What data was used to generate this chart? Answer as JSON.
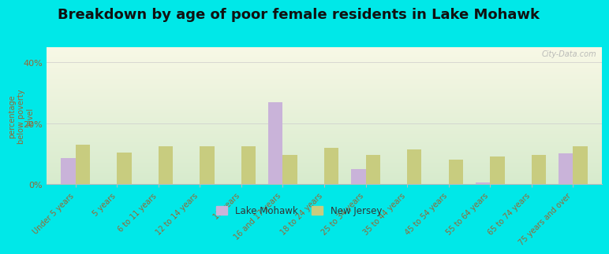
{
  "title": "Breakdown by age of poor female residents in Lake Mohawk",
  "categories": [
    "Under 5 years",
    "5 years",
    "6 to 11 years",
    "12 to 14 years",
    "15 years",
    "16 and 17 years",
    "18 to 24 years",
    "25 to 34 years",
    "35 to 44 years",
    "45 to 54 years",
    "55 to 64 years",
    "65 to 74 years",
    "75 years and over"
  ],
  "lake_mohawk": [
    8.5,
    0,
    0,
    0,
    0,
    27.0,
    0,
    5.0,
    0,
    0,
    0.5,
    0,
    10.0
  ],
  "new_jersey": [
    13.0,
    10.5,
    12.5,
    12.5,
    12.5,
    9.5,
    12.0,
    9.5,
    11.5,
    8.0,
    9.0,
    9.5,
    12.5
  ],
  "lake_mohawk_color": "#c9b3d9",
  "new_jersey_color": "#c8cc7f",
  "outer_bg": "#00e8e8",
  "ylabel": "percentage\nbelow poverty\nlevel",
  "ylim": [
    0,
    45
  ],
  "yticks": [
    0,
    20,
    40
  ],
  "ytick_labels": [
    "0%",
    "20%",
    "40%"
  ],
  "bar_width": 0.35,
  "title_fontsize": 13,
  "axis_color": "#996633",
  "tick_color": "#7a7a7a",
  "watermark": "City-Data.com",
  "legend_label_color": "#333333"
}
